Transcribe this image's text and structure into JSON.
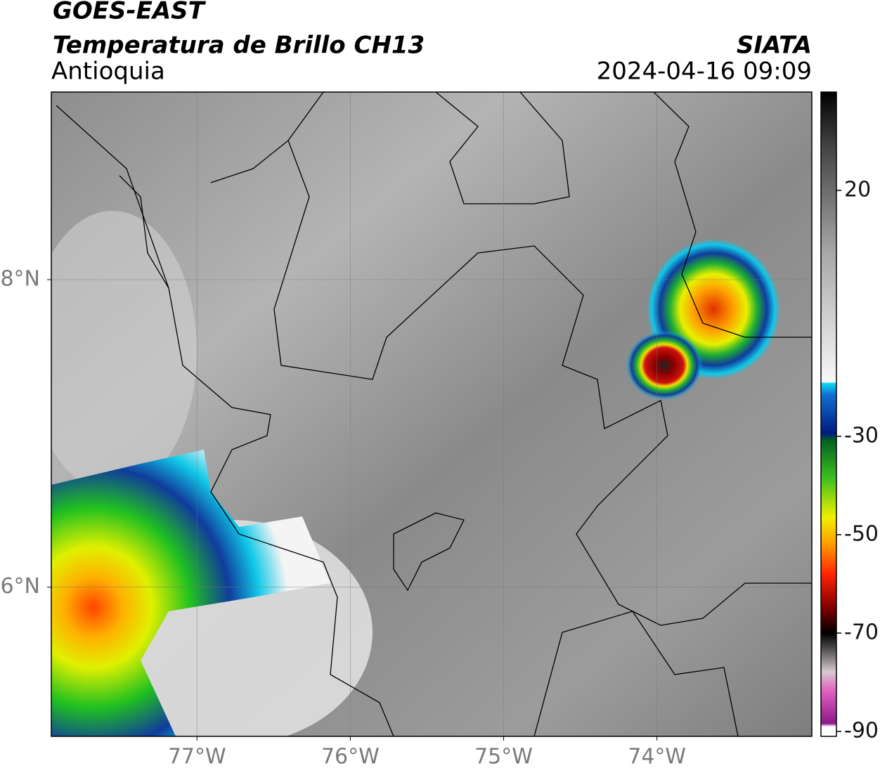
{
  "header": {
    "satellite": "GOES-EAST",
    "product": "Temperatura de Brillo CH13",
    "region": "Antioquia",
    "source": "SIATA",
    "datetime": "2024-04-16 09:09"
  },
  "map": {
    "lonlim": [
      -77.95,
      -72.99
    ],
    "latlim": [
      5.03,
      9.22
    ],
    "lonticks": [
      {
        "value": -77,
        "label": "77°W"
      },
      {
        "value": -76,
        "label": "76°W"
      },
      {
        "value": -75,
        "label": "75°W"
      },
      {
        "value": -74,
        "label": "74°W"
      }
    ],
    "latticks": [
      {
        "value": 8,
        "label": "8°N"
      },
      {
        "value": 6,
        "label": "6°N"
      }
    ],
    "grid": true
  },
  "colorbar": {
    "lim": [
      -91,
      40
    ],
    "ticks": [
      20,
      -30,
      -50,
      -70,
      -90
    ]
  }
}
